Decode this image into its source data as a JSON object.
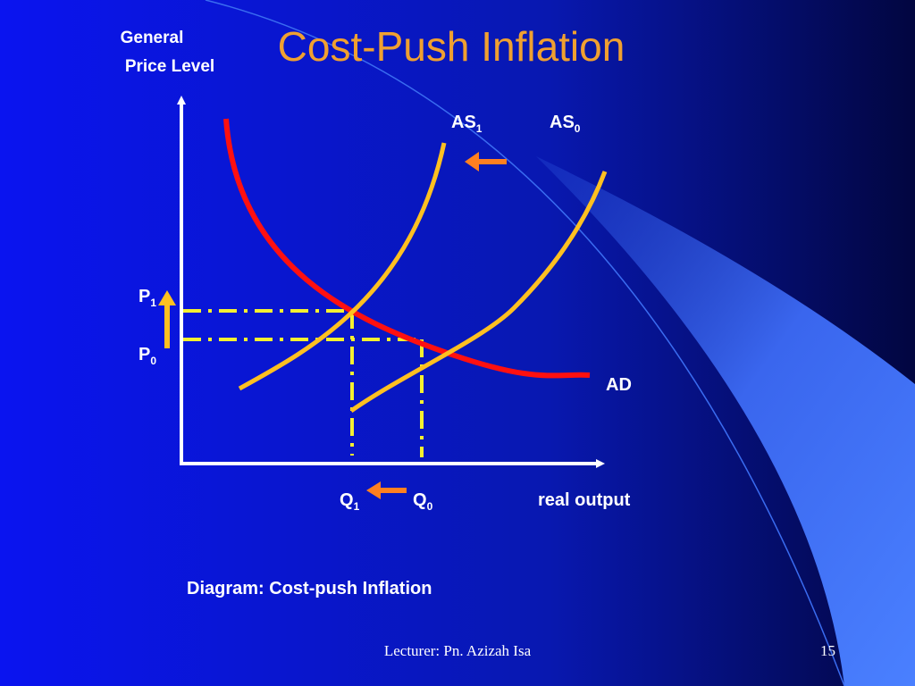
{
  "title": "Cost-Push Inflation",
  "axis_label": [
    "General",
    "Price Level"
  ],
  "curves": [
    {
      "label": "AS",
      "sub": "1"
    },
    {
      "label": "AS",
      "sub": "0"
    },
    {
      "label": "AD"
    }
  ],
  "price_labels": [
    {
      "label": "P",
      "sub": "1"
    },
    {
      "label": "P",
      "sub": "0"
    }
  ],
  "quantity_labels": [
    {
      "label": "Q",
      "sub": "1"
    },
    {
      "label": "Q",
      "sub": "0"
    }
  ],
  "x_axis_label": "real output",
  "caption": "Diagram: Cost-push Inflation",
  "footer": {
    "lecturer": "Lecturer: Pn. Azizah Isa",
    "page": "15"
  }
}
